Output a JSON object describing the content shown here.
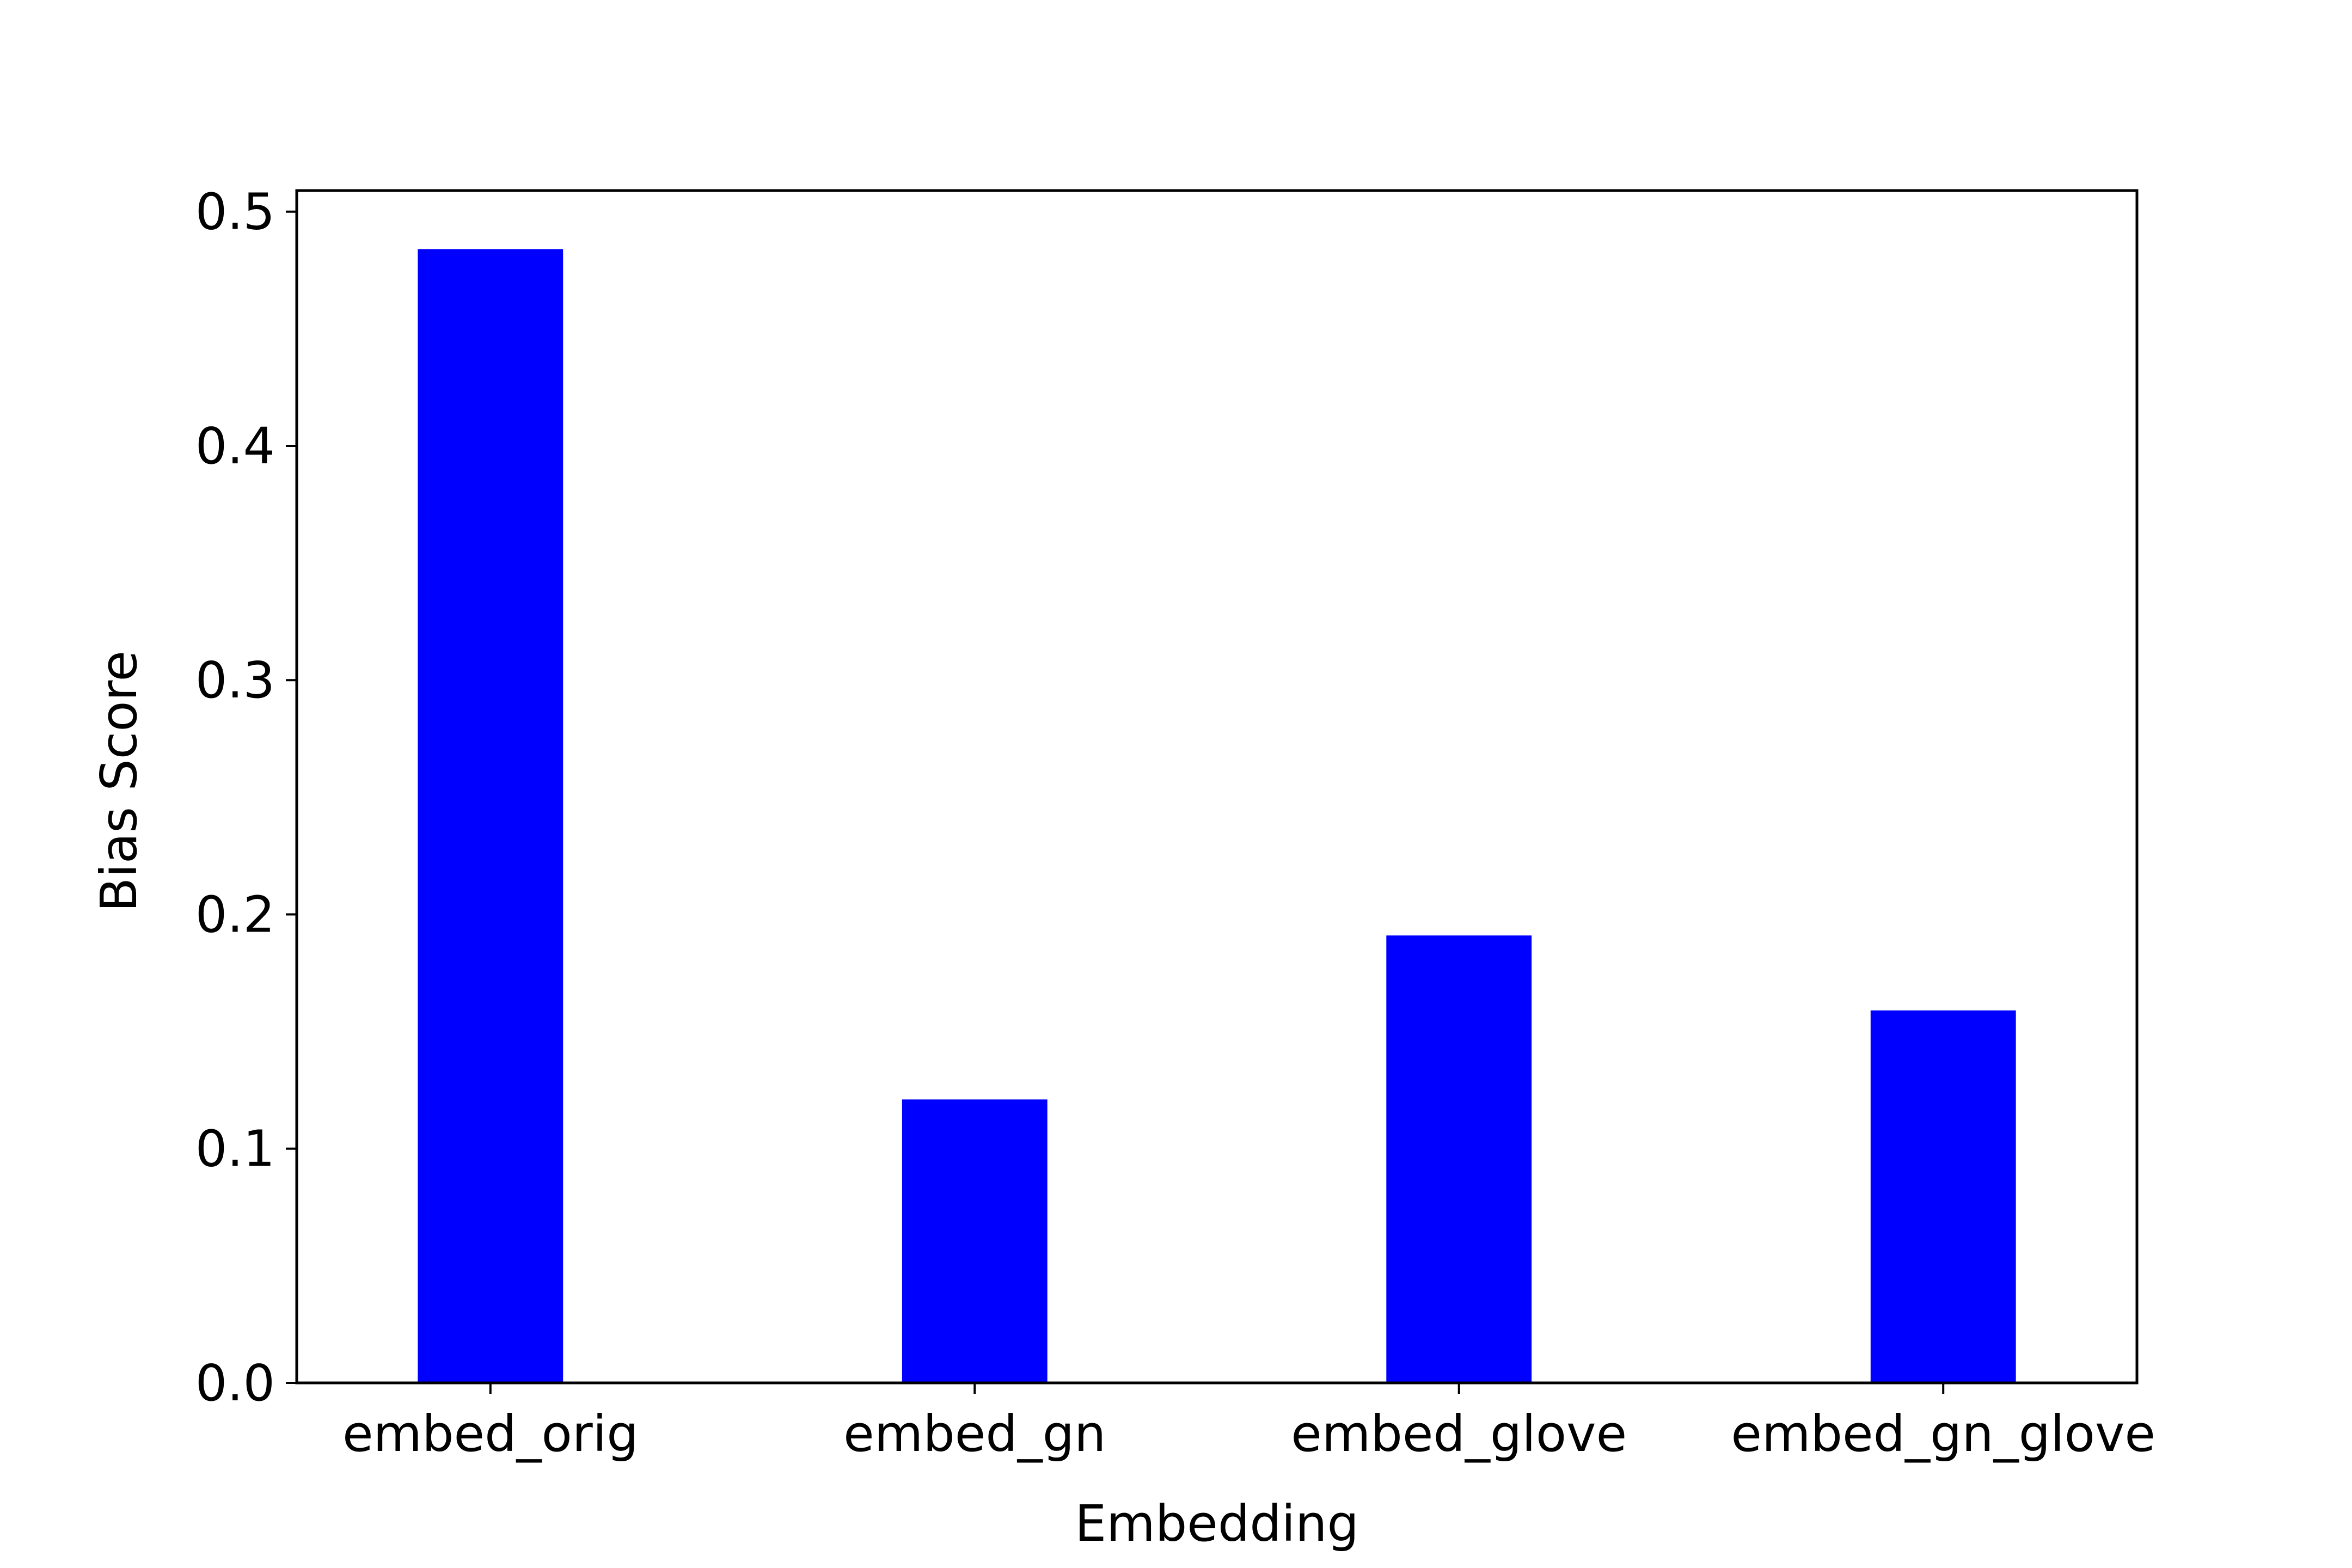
{
  "chart_data": {
    "type": "bar",
    "title": "",
    "xlabel": "Embedding",
    "ylabel": "Bias Score",
    "categories": [
      "embed_orig",
      "embed_gn",
      "embed_glove",
      "embed_gn_glove"
    ],
    "values": [
      0.484,
      0.121,
      0.191,
      0.159
    ],
    "ylim": [
      0,
      0.509
    ],
    "yticks": [
      0.0,
      0.1,
      0.2,
      0.3,
      0.4,
      0.5
    ],
    "ytick_labels": [
      "0.0",
      "0.1",
      "0.2",
      "0.3",
      "0.4",
      "0.5"
    ],
    "grid": false,
    "legend": "none",
    "bar_color": "#0000ff"
  }
}
